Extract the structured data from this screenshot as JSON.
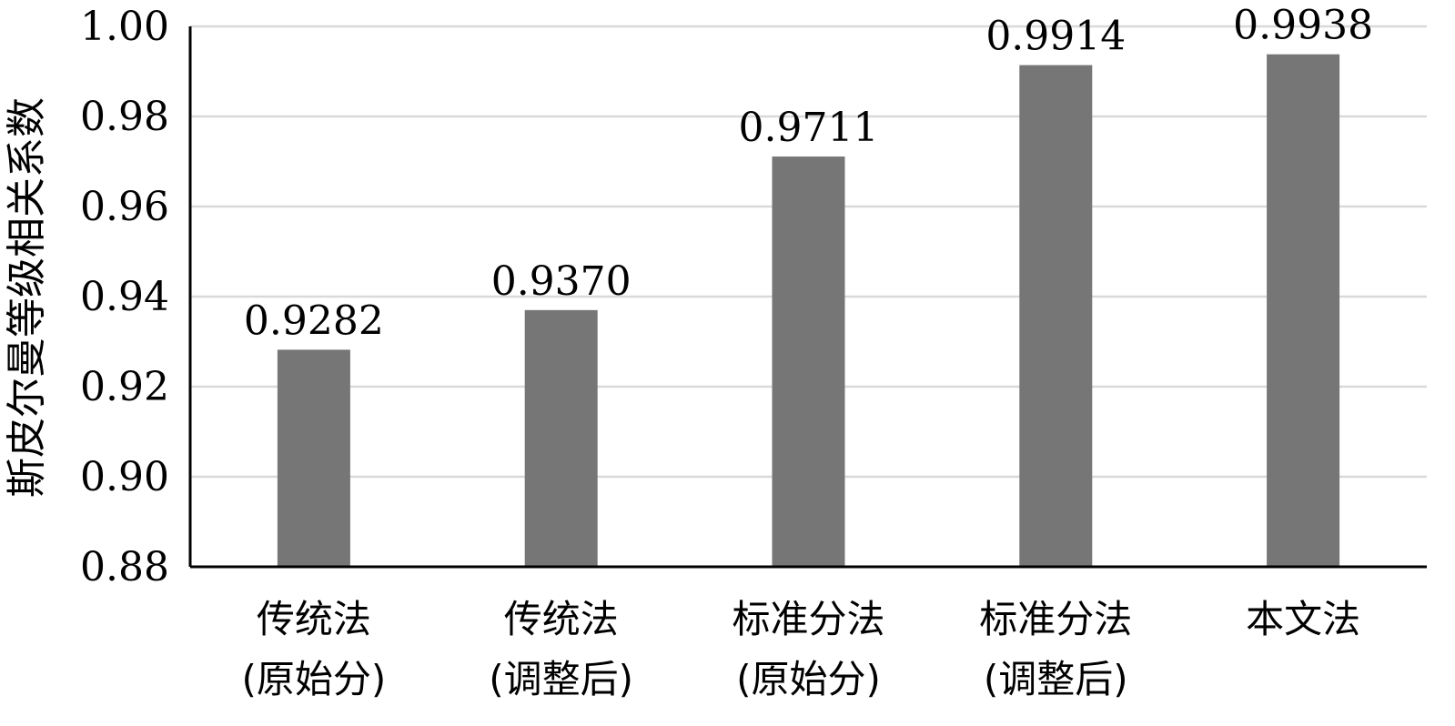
{
  "chart_data": {
    "type": "bar",
    "title": "",
    "xlabel": "",
    "ylabel": "斯皮尔曼等级相关系数",
    "categories": [
      [
        "传统法",
        "(原始分)"
      ],
      [
        "传统法",
        "(调整后)"
      ],
      [
        "标准分法",
        "(原始分)"
      ],
      [
        "标准分法",
        "(调整后)"
      ],
      [
        "本文法"
      ]
    ],
    "values": [
      0.9282,
      0.937,
      0.9711,
      0.9914,
      0.9938
    ],
    "data_labels": [
      "0.9282",
      "0.9370",
      "0.9711",
      "0.9914",
      "0.9938"
    ],
    "ylim": [
      0.88,
      1.0
    ],
    "yticks": [
      "0.88",
      "0.90",
      "0.92",
      "0.94",
      "0.96",
      "0.98",
      "1.00"
    ],
    "grid": true,
    "bar_color": "#767676",
    "grid_color": "#d9d9d9",
    "axis_color": "#000000"
  }
}
